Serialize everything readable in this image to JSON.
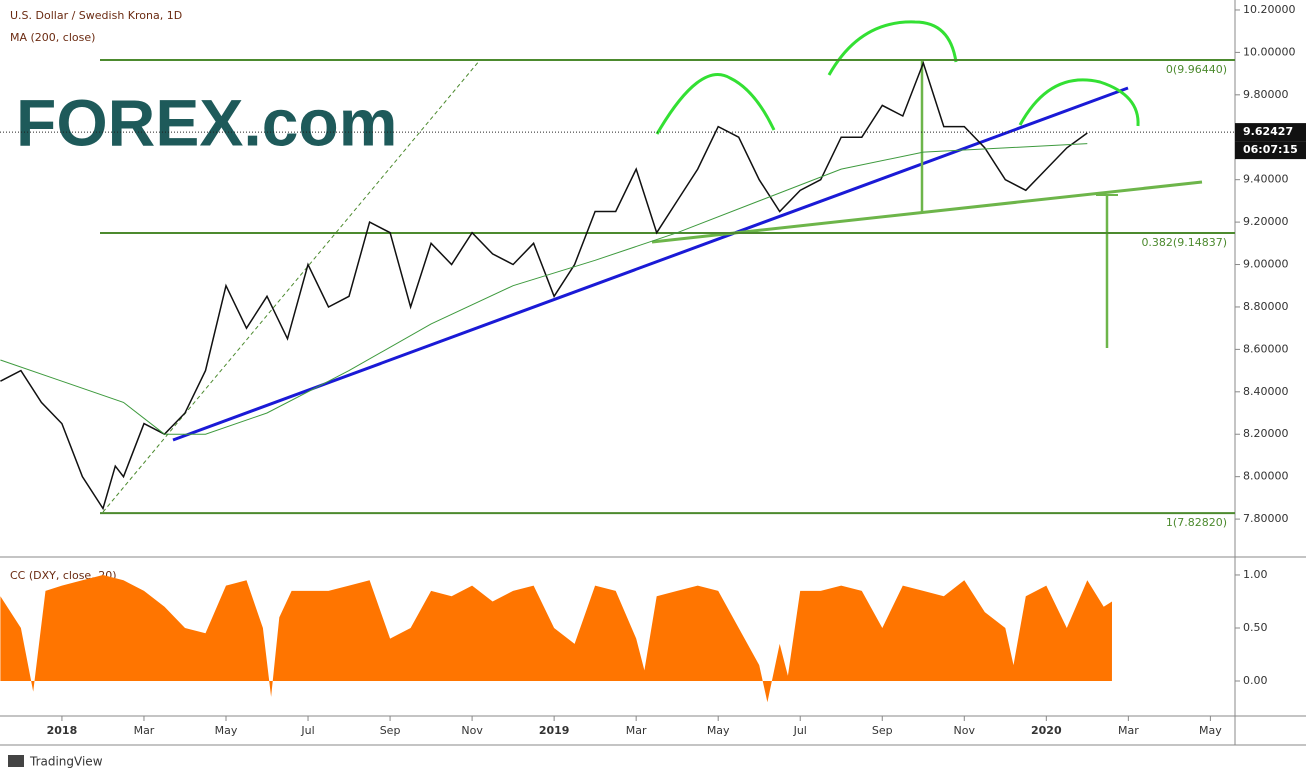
{
  "chart_data": [
    {
      "type": "line",
      "title": "U.S. Dollar / Swedish Krona, 1D",
      "subtitle": "MA (200, close)",
      "logo": "FOREX.com",
      "xlim": [
        -1.51,
        28.6
      ],
      "ylim": [
        7.626,
        10.247
      ],
      "yticks": [
        {
          "value": 10.2,
          "label": "10.20000"
        },
        {
          "value": 10.0,
          "label": "10.00000"
        },
        {
          "value": 9.8,
          "label": "9.80000"
        },
        {
          "value": 9.4,
          "label": "9.40000"
        },
        {
          "value": 9.2,
          "label": "9.20000"
        },
        {
          "value": 9.0,
          "label": "9.00000"
        },
        {
          "value": 8.8,
          "label": "8.80000"
        },
        {
          "value": 8.6,
          "label": "8.60000"
        },
        {
          "value": 8.4,
          "label": "8.40000"
        },
        {
          "value": 8.2,
          "label": "8.20000"
        },
        {
          "value": 8.0,
          "label": "8.00000"
        },
        {
          "value": 7.8,
          "label": "7.80000"
        }
      ],
      "last_price": 9.62427,
      "countdown": "06:07:15",
      "levels": [
        {
          "value": 9.9644,
          "label": "0(9.96440)"
        },
        {
          "value": 9.14837,
          "label": "0.382(9.14837)"
        },
        {
          "value": 7.8282,
          "label": "1(7.82820)"
        }
      ],
      "level_color": "#4c8a2e",
      "series": [
        {
          "color": "#111111",
          "x": [
            -1.5,
            -1,
            -0.5,
            0,
            0.5,
            1,
            1.3,
            1.5,
            2,
            2.5,
            3,
            3.5,
            4,
            4.5,
            5,
            5.5,
            6,
            6.5,
            7,
            7.5,
            8,
            8.5,
            9,
            9.5,
            10,
            10.5,
            11,
            11.5,
            12,
            12.5,
            13,
            13.5,
            14,
            14.5,
            15,
            15.5,
            16,
            16.5,
            17,
            17.5,
            18,
            18.5,
            19,
            19.5,
            20,
            20.5,
            21,
            21.5,
            22,
            22.5,
            23,
            23.5,
            24,
            24.5,
            25
          ],
          "values": [
            8.45,
            8.5,
            8.35,
            8.25,
            8.0,
            7.85,
            8.05,
            8.0,
            8.25,
            8.2,
            8.3,
            8.5,
            8.9,
            8.7,
            8.85,
            8.65,
            9.0,
            8.8,
            8.85,
            9.2,
            9.15,
            8.8,
            9.1,
            9.0,
            9.15,
            9.05,
            9.0,
            9.1,
            8.85,
            9.0,
            9.25,
            9.25,
            9.45,
            9.15,
            9.3,
            9.45,
            9.65,
            9.6,
            9.4,
            9.25,
            9.35,
            9.4,
            9.6,
            9.6,
            9.75,
            9.7,
            9.95,
            9.65,
            9.65,
            9.55,
            9.4,
            9.35,
            9.45,
            9.55,
            9.62
          ]
        },
        {
          "color": "#3e9a3e",
          "x": [
            -1.5,
            0,
            1.5,
            2.5,
            3.5,
            5,
            7,
            9,
            11,
            13,
            15,
            17,
            19,
            21,
            23,
            25
          ],
          "values": [
            8.55,
            8.45,
            8.35,
            8.2,
            8.2,
            8.3,
            8.5,
            8.72,
            8.9,
            9.02,
            9.15,
            9.3,
            9.45,
            9.53,
            9.55,
            9.57
          ]
        }
      ]
    },
    {
      "type": "area",
      "title": "CC (DXY, close, 20)",
      "xlim": [
        -1.51,
        28.6
      ],
      "ylim": [
        -0.33,
        1.16
      ],
      "yticks": [
        {
          "value": 1.0,
          "label": "1.00"
        },
        {
          "value": 0.5,
          "label": "0.50"
        },
        {
          "value": 0.0,
          "label": "0.00"
        }
      ],
      "xticks": [
        {
          "value": 0,
          "label": "2018"
        },
        {
          "value": 2,
          "label": "Mar"
        },
        {
          "value": 4,
          "label": "May"
        },
        {
          "value": 6,
          "label": "Jul"
        },
        {
          "value": 8,
          "label": "Sep"
        },
        {
          "value": 10,
          "label": "Nov"
        },
        {
          "value": 12,
          "label": "2019"
        },
        {
          "value": 14,
          "label": "Mar"
        },
        {
          "value": 16,
          "label": "May"
        },
        {
          "value": 18,
          "label": "Jul"
        },
        {
          "value": 20,
          "label": "Sep"
        },
        {
          "value": 22,
          "label": "Nov"
        },
        {
          "value": 24,
          "label": "2020"
        },
        {
          "value": 26,
          "label": "Mar"
        },
        {
          "value": 28,
          "label": "May"
        }
      ],
      "series": [
        {
          "color": "#ff7500",
          "x": [
            -1.5,
            -1,
            -0.7,
            -0.4,
            0,
            0.5,
            1,
            1.5,
            2,
            2.5,
            3,
            3.5,
            4,
            4.5,
            4.9,
            5.1,
            5.3,
            5.6,
            6,
            6.5,
            7,
            7.5,
            8,
            8.5,
            9,
            9.5,
            10,
            10.5,
            11,
            11.5,
            12,
            12.5,
            13,
            13.5,
            14,
            14.2,
            14.5,
            15,
            15.5,
            16,
            16.5,
            17,
            17.2,
            17.5,
            17.7,
            18,
            18.5,
            19,
            19.5,
            20,
            20.5,
            21,
            21.5,
            22,
            22.5,
            23,
            23.2,
            23.5,
            24,
            24.5,
            25,
            25.4,
            25.6
          ],
          "values": [
            0.8,
            0.5,
            -0.1,
            0.85,
            0.9,
            0.95,
            1.0,
            0.95,
            0.85,
            0.7,
            0.5,
            0.45,
            0.9,
            0.95,
            0.5,
            -0.15,
            0.6,
            0.85,
            0.85,
            0.85,
            0.9,
            0.95,
            0.4,
            0.5,
            0.85,
            0.8,
            0.9,
            0.75,
            0.85,
            0.9,
            0.5,
            0.35,
            0.9,
            0.85,
            0.4,
            0.1,
            0.8,
            0.85,
            0.9,
            0.85,
            0.5,
            0.15,
            -0.2,
            0.35,
            0.05,
            0.85,
            0.85,
            0.9,
            0.85,
            0.5,
            0.9,
            0.85,
            0.8,
            0.95,
            0.65,
            0.5,
            0.15,
            0.8,
            0.9,
            0.5,
            0.95,
            0.7,
            0.75
          ]
        }
      ]
    }
  ],
  "footer": "TradingView"
}
